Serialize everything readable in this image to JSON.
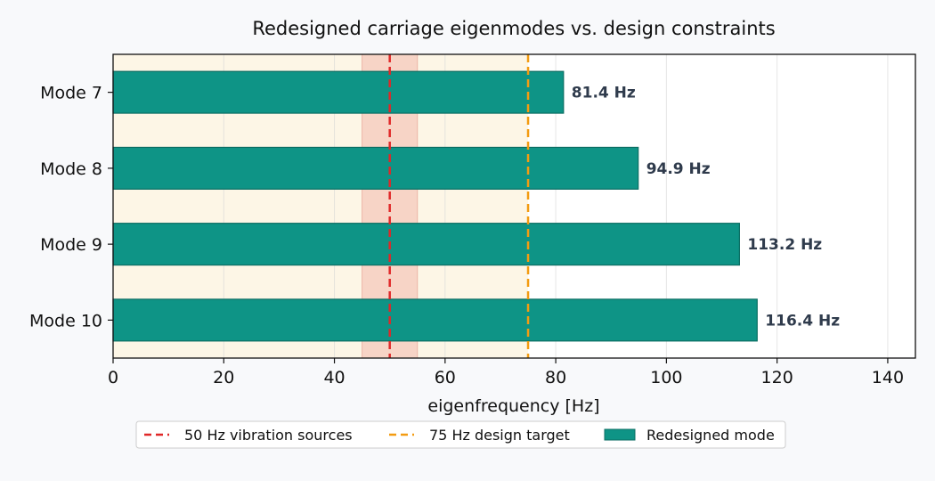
{
  "chart_data": {
    "type": "bar",
    "orientation": "horizontal",
    "title": "Redesigned carriage eigenmodes vs. design constraints",
    "xlabel": "eigenfrequency [Hz]",
    "ylabel": "",
    "xlim": [
      0,
      145
    ],
    "xticks": [
      0,
      20,
      40,
      60,
      80,
      100,
      120,
      140
    ],
    "grid": "x",
    "categories": [
      "Mode 7",
      "Mode 8",
      "Mode 9",
      "Mode 10"
    ],
    "series": [
      {
        "name": "Redesigned mode",
        "values": [
          81.4,
          94.9,
          113.2,
          116.4
        ],
        "labels": [
          "81.4 Hz",
          "94.9 Hz",
          "113.2 Hz",
          "116.4 Hz"
        ],
        "color": "#0e9486",
        "edge_color": "#0b6e63"
      }
    ],
    "regions": [
      {
        "from": 0,
        "to": 75,
        "color": "#fdf6e6"
      },
      {
        "from": 45,
        "to": 55,
        "color": "#f7d4c6"
      }
    ],
    "reference_lines": [
      {
        "name": "50 Hz vibration sources",
        "x": 50,
        "color": "#e02828",
        "style": "dashed"
      },
      {
        "name": "75 Hz design target",
        "x": 75,
        "color": "#f39c12",
        "style": "dashed"
      }
    ],
    "legend": {
      "placement": "bottom-center",
      "entries": [
        "50 Hz vibration sources",
        "75 Hz design target",
        "Redesigned mode"
      ]
    }
  }
}
